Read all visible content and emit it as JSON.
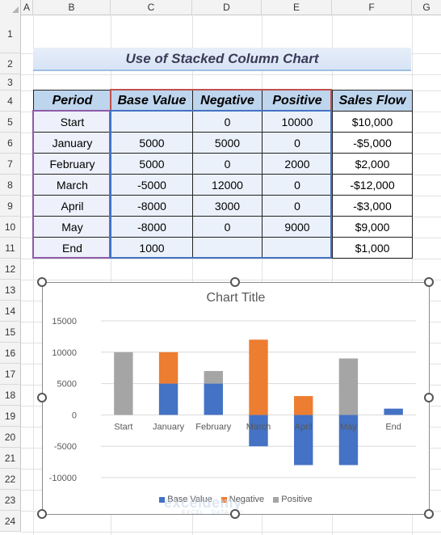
{
  "columns": [
    "A",
    "B",
    "C",
    "D",
    "E",
    "F",
    "G"
  ],
  "rows": [
    "1",
    "2",
    "3",
    "4",
    "5",
    "6",
    "7",
    "8",
    "9",
    "10",
    "11",
    "12",
    "13",
    "14",
    "15",
    "16",
    "17",
    "18",
    "19",
    "20",
    "21",
    "22",
    "23",
    "24"
  ],
  "banner_title": "Use of Stacked Column Chart",
  "table": {
    "headers": [
      "Period",
      "Base Value",
      "Negative",
      "Positive",
      "Sales Flow"
    ],
    "rows": [
      {
        "period": "Start",
        "base": "",
        "neg": "0",
        "pos": "10000",
        "flow": "$10,000"
      },
      {
        "period": "January",
        "base": "5000",
        "neg": "5000",
        "pos": "0",
        "flow": "-$5,000"
      },
      {
        "period": "February",
        "base": "5000",
        "neg": "0",
        "pos": "2000",
        "flow": "$2,000"
      },
      {
        "period": "March",
        "base": "-5000",
        "neg": "12000",
        "pos": "0",
        "flow": "-$12,000"
      },
      {
        "period": "April",
        "base": "-8000",
        "neg": "3000",
        "pos": "0",
        "flow": "-$3,000"
      },
      {
        "period": "May",
        "base": "-8000",
        "neg": "0",
        "pos": "9000",
        "flow": "$9,000"
      },
      {
        "period": "End",
        "base": "1000",
        "neg": "",
        "pos": "",
        "flow": "$1,000"
      }
    ]
  },
  "colors": {
    "base": "#4472c4",
    "negative": "#ed7d31",
    "positive": "#a5a5a5"
  },
  "chart_data": {
    "type": "bar",
    "stacked": true,
    "title": "Chart Title",
    "categories": [
      "Start",
      "January",
      "February",
      "March",
      "April",
      "May",
      "End"
    ],
    "series": [
      {
        "name": "Base Value",
        "values": [
          0,
          5000,
          5000,
          -5000,
          -8000,
          -8000,
          1000
        ]
      },
      {
        "name": "Negative",
        "values": [
          0,
          5000,
          0,
          12000,
          3000,
          0,
          0
        ]
      },
      {
        "name": "Positive",
        "values": [
          10000,
          0,
          2000,
          0,
          0,
          9000,
          0
        ]
      }
    ],
    "ylim": [
      -10000,
      15000
    ],
    "yticks": [
      "15000",
      "10000",
      "5000",
      "0",
      "-5000",
      "-10000"
    ],
    "grid": true,
    "legend": "bottom"
  },
  "watermark": {
    "name": "exceldemy",
    "tagline": "EXCEL · DATA · BI"
  }
}
